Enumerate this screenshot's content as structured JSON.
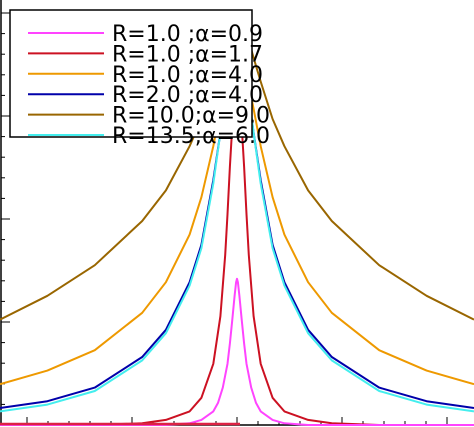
{
  "chart_data": {
    "type": "line",
    "title": "",
    "xlabel": "",
    "ylabel": "",
    "xlim": [
      -1,
      1
    ],
    "ylim": [
      0,
      1.25
    ],
    "legend_position": "top-left",
    "grid": false,
    "series": [
      {
        "name": "R=1.0  ;α=0.9",
        "color": "#ff44ff",
        "x": [
          -1,
          -0.3,
          -0.2,
          -0.15,
          -0.1,
          -0.08,
          -0.06,
          -0.04,
          -0.03,
          -0.02,
          -0.01,
          -0.004,
          0,
          0.004,
          0.01,
          0.02,
          0.03,
          0.04,
          0.06,
          0.08,
          0.1,
          0.15,
          0.2,
          0.3,
          1
        ],
        "y": [
          0,
          0.0,
          0.005,
          0.015,
          0.04,
          0.065,
          0.11,
          0.18,
          0.24,
          0.31,
          0.38,
          0.42,
          0.43,
          0.42,
          0.38,
          0.31,
          0.24,
          0.18,
          0.11,
          0.065,
          0.04,
          0.015,
          0.005,
          0.0,
          0
        ]
      },
      {
        "name": "R=1.0  ;α=1.7",
        "color": "#cc1122",
        "x": [
          -1,
          -0.6,
          -0.4,
          -0.3,
          -0.2,
          -0.15,
          -0.1,
          -0.07,
          -0.05,
          -0.04,
          -0.03,
          -0.02,
          -0.013,
          -0.007,
          0,
          0.007,
          0.013,
          0.02,
          0.03,
          0.04,
          0.05,
          0.07,
          0.1,
          0.15,
          0.2,
          0.3,
          0.4,
          0.6,
          1
        ],
        "y": [
          0.0,
          0.0,
          0.005,
          0.015,
          0.04,
          0.08,
          0.18,
          0.32,
          0.5,
          0.62,
          0.76,
          0.88,
          0.94,
          0.9,
          0.88,
          0.9,
          0.94,
          0.88,
          0.76,
          0.62,
          0.5,
          0.32,
          0.18,
          0.08,
          0.04,
          0.015,
          0.005,
          0.0,
          0.0
        ]
      },
      {
        "name": "R=1.0  ;α=4.0",
        "color": "#ee9900",
        "x": [
          -1,
          -0.8,
          -0.6,
          -0.4,
          -0.3,
          -0.2,
          -0.15,
          -0.1,
          -0.07,
          -0.05,
          -0.035,
          -0.02,
          -0.008,
          0,
          0.008,
          0.02,
          0.035,
          0.05,
          0.07,
          0.1,
          0.15,
          0.2,
          0.3,
          0.4,
          0.6,
          0.8,
          1
        ],
        "y": [
          0.12,
          0.16,
          0.22,
          0.33,
          0.42,
          0.56,
          0.67,
          0.82,
          0.93,
          1.0,
          1.06,
          1.1,
          1.05,
          1.0,
          1.05,
          1.1,
          1.06,
          1.0,
          0.93,
          0.82,
          0.67,
          0.56,
          0.42,
          0.33,
          0.22,
          0.16,
          0.12
        ]
      },
      {
        "name": "R=2.0  ;α=4.0",
        "color": "#0000aa",
        "x": [
          -1,
          -0.8,
          -0.6,
          -0.4,
          -0.3,
          -0.2,
          -0.15,
          -0.1,
          -0.07,
          -0.05,
          -0.035,
          -0.02,
          -0.008,
          0,
          0.008,
          0.02,
          0.035,
          0.05,
          0.07,
          0.1,
          0.15,
          0.2,
          0.3,
          0.4,
          0.6,
          0.8,
          1
        ],
        "y": [
          0.05,
          0.07,
          0.11,
          0.2,
          0.28,
          0.42,
          0.53,
          0.72,
          0.86,
          0.96,
          1.04,
          1.1,
          1.04,
          0.97,
          1.04,
          1.1,
          1.04,
          0.96,
          0.86,
          0.72,
          0.53,
          0.42,
          0.28,
          0.2,
          0.11,
          0.07,
          0.05
        ]
      },
      {
        "name": "R=10.0;α=9.0",
        "color": "#996600",
        "x": [
          -1,
          -0.8,
          -0.6,
          -0.4,
          -0.3,
          -0.2,
          -0.15,
          -0.1,
          -0.07,
          -0.05,
          -0.035,
          -0.02,
          -0.008,
          0,
          0.008,
          0.02,
          0.035,
          0.05,
          0.07,
          0.1,
          0.15,
          0.2,
          0.3,
          0.4,
          0.6,
          0.8,
          1
        ],
        "y": [
          0.31,
          0.38,
          0.47,
          0.6,
          0.69,
          0.82,
          0.9,
          1.01,
          1.08,
          1.13,
          1.16,
          1.17,
          1.13,
          1.08,
          1.13,
          1.17,
          1.16,
          1.13,
          1.08,
          1.01,
          0.9,
          0.82,
          0.69,
          0.6,
          0.47,
          0.38,
          0.31
        ]
      },
      {
        "name": "R=13.5;α=6.0",
        "color": "#44eeee",
        "x": [
          -1,
          -0.8,
          -0.6,
          -0.4,
          -0.3,
          -0.2,
          -0.15,
          -0.1,
          -0.07,
          -0.05,
          -0.035,
          -0.022,
          -0.012,
          -0.005,
          0,
          0.005,
          0.012,
          0.022,
          0.035,
          0.05,
          0.07,
          0.1,
          0.15,
          0.2,
          0.3,
          0.4,
          0.6,
          0.8,
          1
        ],
        "y": [
          0.04,
          0.06,
          0.1,
          0.19,
          0.27,
          0.41,
          0.52,
          0.71,
          0.86,
          0.97,
          1.06,
          1.15,
          1.18,
          1.14,
          1.1,
          1.14,
          1.18,
          1.15,
          1.06,
          0.97,
          0.86,
          0.71,
          0.52,
          0.41,
          0.27,
          0.19,
          0.1,
          0.06,
          0.04
        ]
      }
    ]
  }
}
